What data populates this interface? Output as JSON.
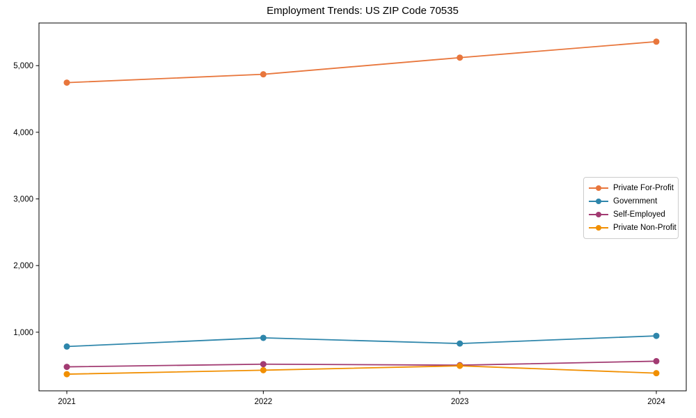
{
  "chart_data": {
    "type": "line",
    "title": "Employment Trends: US ZIP Code 70535",
    "xlabel": "",
    "ylabel": "",
    "categories": [
      "2021",
      "2022",
      "2023",
      "2024"
    ],
    "series": [
      {
        "name": "Private For-Profit",
        "color": "#E8763C",
        "values": [
          4745,
          4870,
          5120,
          5360
        ]
      },
      {
        "name": "Government",
        "color": "#2E86AB",
        "values": [
          785,
          915,
          830,
          945
        ]
      },
      {
        "name": "Self-Employed",
        "color": "#A23B72",
        "values": [
          480,
          520,
          505,
          565
        ]
      },
      {
        "name": "Private Non-Profit",
        "color": "#F18F01",
        "values": [
          370,
          430,
          495,
          385
        ]
      }
    ],
    "ylim": [
      120,
      5640
    ],
    "yticks": [
      1000,
      2000,
      3000,
      4000,
      5000
    ],
    "grid": false,
    "legend_position": "center right",
    "marker": "circle",
    "axis_color": "#000000",
    "tick_label_color": "#000000"
  }
}
